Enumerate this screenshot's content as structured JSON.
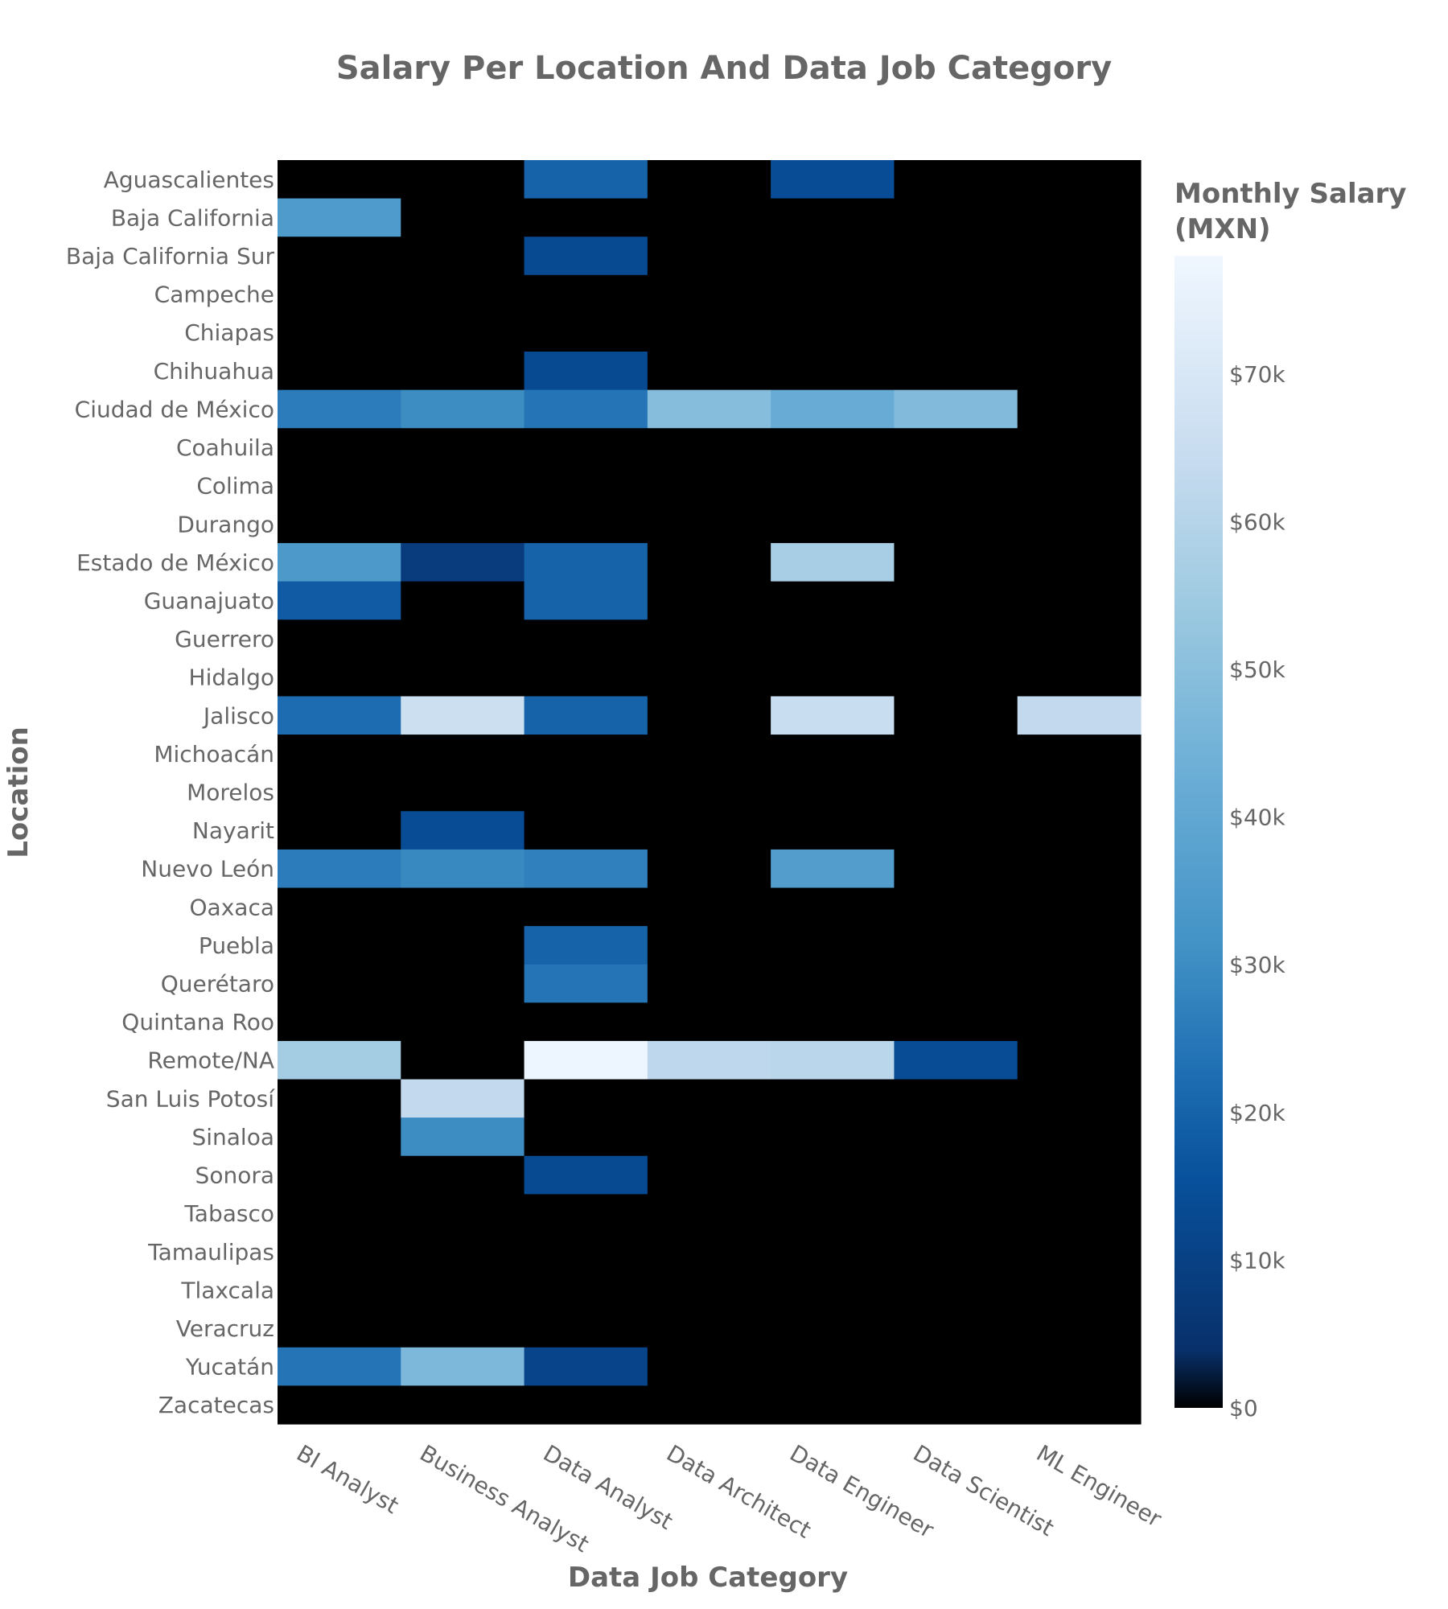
{
  "chart_data": {
    "type": "heatmap",
    "title": "Salary Per Location And Data Job Category",
    "xlabel": "Data Job Category",
    "ylabel": "Location",
    "colorbar": {
      "title_line1": "Monthly Salary",
      "title_line2": "(MXN)",
      "range": [
        0,
        78000
      ],
      "ticks": [
        {
          "value": 0,
          "label": "$0"
        },
        {
          "value": 10000,
          "label": "$10k"
        },
        {
          "value": 20000,
          "label": "$20k"
        },
        {
          "value": 30000,
          "label": "$30k"
        },
        {
          "value": 40000,
          "label": "$40k"
        },
        {
          "value": 50000,
          "label": "$50k"
        },
        {
          "value": 60000,
          "label": "$60k"
        },
        {
          "value": 70000,
          "label": "$70k"
        }
      ]
    },
    "x_categories": [
      "BI Analyst",
      "Business Analyst",
      "Data Analyst",
      "Data Architect",
      "Data Engineer",
      "Data Scientist",
      "ML Engineer"
    ],
    "y_categories": [
      "Aguascalientes",
      "Baja California",
      "Baja California Sur",
      "Campeche",
      "Chiapas",
      "Chihuahua",
      "Ciudad de México",
      "Coahuila",
      "Colima",
      "Durango",
      "Estado de México",
      "Guanajuato",
      "Guerrero",
      "Hidalgo",
      "Jalisco",
      "Michoacán",
      "Morelos",
      "Nayarit",
      "Nuevo León",
      "Oaxaca",
      "Puebla",
      "Querétaro",
      "Quintana Roo",
      "Remote/NA",
      "San Luis Potosí",
      "Sinaloa",
      "Sonora",
      "Tabasco",
      "Tamaulipas",
      "Tlaxcala",
      "Veracruz",
      "Yucatán",
      "Zacatecas"
    ],
    "z": [
      [
        0,
        0,
        20000,
        0,
        14000,
        0,
        0
      ],
      [
        35000,
        0,
        0,
        0,
        0,
        0,
        0
      ],
      [
        0,
        0,
        13000,
        0,
        0,
        0,
        0
      ],
      [
        0,
        0,
        0,
        0,
        0,
        0,
        0
      ],
      [
        0,
        0,
        0,
        0,
        0,
        0,
        0
      ],
      [
        0,
        0,
        13000,
        0,
        0,
        0,
        0
      ],
      [
        26000,
        30000,
        24000,
        49000,
        42000,
        48000,
        0
      ],
      [
        0,
        0,
        0,
        0,
        0,
        0,
        0
      ],
      [
        0,
        0,
        0,
        0,
        0,
        0,
        0
      ],
      [
        0,
        0,
        0,
        0,
        0,
        0,
        0
      ],
      [
        34000,
        8000,
        20000,
        0,
        57000,
        0,
        0
      ],
      [
        18000,
        0,
        20000,
        0,
        0,
        0,
        0
      ],
      [
        0,
        0,
        0,
        0,
        0,
        0,
        0
      ],
      [
        0,
        0,
        0,
        0,
        0,
        0,
        0
      ],
      [
        22000,
        66000,
        20000,
        0,
        65000,
        0,
        63000
      ],
      [
        0,
        0,
        0,
        0,
        0,
        0,
        0
      ],
      [
        0,
        0,
        0,
        0,
        0,
        0,
        0
      ],
      [
        0,
        14000,
        0,
        0,
        0,
        0,
        0
      ],
      [
        26000,
        29000,
        27000,
        0,
        36000,
        0,
        0
      ],
      [
        0,
        0,
        0,
        0,
        0,
        0,
        0
      ],
      [
        0,
        0,
        20000,
        0,
        0,
        0,
        0
      ],
      [
        0,
        0,
        24000,
        0,
        0,
        0,
        0
      ],
      [
        0,
        0,
        0,
        0,
        0,
        0,
        0
      ],
      [
        56000,
        0,
        77000,
        62000,
        61000,
        14000,
        0
      ],
      [
        0,
        63000,
        0,
        0,
        0,
        0,
        0
      ],
      [
        0,
        30000,
        0,
        0,
        0,
        0,
        0
      ],
      [
        0,
        0,
        13000,
        0,
        0,
        0,
        0
      ],
      [
        0,
        0,
        0,
        0,
        0,
        0,
        0
      ],
      [
        0,
        0,
        0,
        0,
        0,
        0,
        0
      ],
      [
        0,
        0,
        0,
        0,
        0,
        0,
        0
      ],
      [
        0,
        0,
        0,
        0,
        0,
        0,
        0
      ],
      [
        24000,
        47000,
        11000,
        0,
        0,
        0,
        0
      ],
      [
        0,
        0,
        0,
        0,
        0,
        0,
        0
      ]
    ],
    "colorscale": [
      [
        0.0,
        "#000000"
      ],
      [
        0.05,
        "#08306b"
      ],
      [
        0.2,
        "#08519c"
      ],
      [
        0.3,
        "#2171b5"
      ],
      [
        0.4,
        "#4292c6"
      ],
      [
        0.55,
        "#6baed6"
      ],
      [
        0.7,
        "#9ecae1"
      ],
      [
        0.82,
        "#c6dbef"
      ],
      [
        1.0,
        "#f0f7ff"
      ]
    ]
  }
}
